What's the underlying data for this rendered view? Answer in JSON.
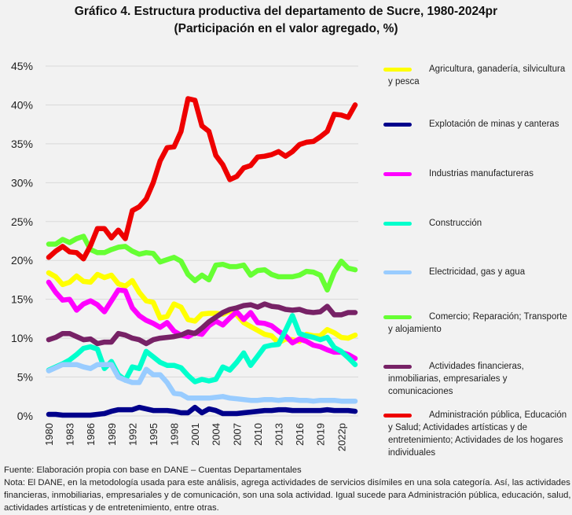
{
  "title": {
    "line1": "Gráfico 4. Estructura productiva del departamento de Sucre, 1980-2024pr",
    "line2": "(Participación en el valor agregado, %)"
  },
  "footer": {
    "source": "Fuente: Elaboración propia con base en DANE – Cuentas Departamentales",
    "note": "Nota: El DANE, en la metodología usada para este análisis, agrega actividades de servicios disímiles en una sola categoría. Así, las actividades financieras, inmobiliarias, empresariales y de comunicación, son una sola actividad. Igual sucede para Administración pública, educación, salud, actividades artísticas y de entretenimiento, entre otras."
  },
  "chart_data": {
    "type": "line",
    "title": "Gráfico 4. Estructura productiva del departamento de Sucre, 1980-2024pr",
    "subtitle": "(Participación en el valor agregado, %)",
    "xlabel": "",
    "ylabel": "",
    "ylim": [
      0,
      45
    ],
    "yticks": [
      "0%",
      "5%",
      "10%",
      "15%",
      "20%",
      "25%",
      "30%",
      "35%",
      "40%",
      "45%"
    ],
    "grid": true,
    "legend_position": "right",
    "x": [
      1980,
      1981,
      1982,
      1983,
      1984,
      1985,
      1986,
      1987,
      1988,
      1989,
      1990,
      1991,
      1992,
      1993,
      1994,
      1995,
      1996,
      1997,
      1998,
      1999,
      2000,
      2001,
      2002,
      2003,
      2004,
      2005,
      2006,
      2007,
      2008,
      2009,
      2010,
      2011,
      2012,
      2013,
      2014,
      2015,
      2016,
      2017,
      2018,
      2019,
      2020,
      2021,
      2022,
      2023,
      2024
    ],
    "xtick_labels": [
      "1980",
      "1983",
      "1986",
      "1989",
      "1992",
      "1995",
      "1998",
      "2001",
      "2004",
      "2007",
      "2010",
      "2013",
      "2016",
      "2019",
      "2022p"
    ],
    "series": [
      {
        "name": "Agricultura, ganadería, silvicultura y pesca",
        "color": "#ffff00",
        "values": [
          18.4,
          17.9,
          16.9,
          17.2,
          18.0,
          17.3,
          17.2,
          18.2,
          17.8,
          18.1,
          17.0,
          16.7,
          17.4,
          15.9,
          14.8,
          14.6,
          12.6,
          12.8,
          14.4,
          14.0,
          12.4,
          12.2,
          13.1,
          13.2,
          13.2,
          13.1,
          13.5,
          13.0,
          12.0,
          11.5,
          11.0,
          10.5,
          10.3,
          9.4,
          9.9,
          9.8,
          9.6,
          10.5,
          10.3,
          10.3,
          11.1,
          10.7,
          10.1,
          10.0,
          10.4
        ]
      },
      {
        "name": "Explotación de minas y canteras",
        "color": "#00008b",
        "values": [
          0.2,
          0.2,
          0.1,
          0.1,
          0.1,
          0.1,
          0.1,
          0.2,
          0.3,
          0.6,
          0.8,
          0.8,
          0.8,
          1.1,
          0.9,
          0.7,
          0.7,
          0.7,
          0.6,
          0.4,
          0.4,
          1.1,
          0.4,
          0.9,
          0.7,
          0.3,
          0.3,
          0.3,
          0.4,
          0.5,
          0.6,
          0.7,
          0.7,
          0.8,
          0.8,
          0.7,
          0.7,
          0.7,
          0.7,
          0.7,
          0.8,
          0.7,
          0.7,
          0.7,
          0.6
        ]
      },
      {
        "name": "Industrias manufactureras",
        "color": "#ff00ff",
        "values": [
          17.2,
          15.9,
          14.9,
          15.0,
          13.6,
          14.4,
          14.8,
          14.3,
          13.4,
          14.8,
          16.2,
          16.1,
          13.9,
          12.9,
          12.3,
          11.9,
          11.4,
          12.0,
          10.9,
          10.4,
          10.2,
          10.7,
          10.5,
          11.6,
          12.2,
          11.7,
          12.6,
          13.4,
          12.4,
          13.3,
          12.0,
          11.9,
          11.6,
          10.9,
          10.3,
          9.4,
          9.9,
          9.6,
          9.1,
          8.9,
          8.5,
          8.2,
          8.2,
          7.9,
          7.4
        ]
      },
      {
        "name": "Construcción",
        "color": "#00ffcc",
        "values": [
          5.9,
          6.3,
          6.7,
          7.2,
          7.9,
          8.7,
          8.9,
          8.6,
          6.1,
          7.0,
          5.3,
          4.6,
          6.3,
          6.1,
          8.3,
          7.6,
          6.9,
          6.5,
          6.5,
          6.2,
          5.2,
          4.4,
          4.7,
          4.5,
          4.7,
          6.3,
          5.9,
          6.9,
          8.1,
          6.5,
          7.7,
          8.9,
          9.1,
          9.2,
          11.0,
          12.9,
          10.6,
          10.3,
          10.1,
          9.8,
          10.1,
          8.8,
          8.3,
          7.5,
          6.6
        ]
      },
      {
        "name": "Electricidad, gas y agua",
        "color": "#99ccff",
        "values": [
          5.8,
          6.2,
          6.6,
          6.6,
          6.6,
          6.3,
          6.1,
          6.6,
          6.6,
          6.6,
          5.0,
          4.6,
          4.3,
          4.3,
          6.0,
          5.3,
          5.3,
          4.3,
          2.9,
          2.8,
          2.3,
          2.3,
          2.3,
          2.3,
          2.4,
          2.5,
          2.3,
          2.2,
          2.1,
          2.0,
          2.0,
          2.1,
          2.1,
          2.0,
          2.1,
          2.1,
          2.0,
          2.0,
          1.9,
          2.0,
          2.0,
          2.0,
          1.9,
          1.9,
          1.9
        ]
      },
      {
        "name": "Comercio; Reparación; Transporte y alojamiento",
        "color": "#66ff33",
        "values": [
          22.1,
          22.1,
          22.7,
          22.3,
          22.8,
          23.1,
          21.4,
          21.0,
          21.0,
          21.4,
          21.7,
          21.8,
          21.2,
          20.8,
          21.0,
          20.9,
          19.8,
          20.1,
          20.4,
          19.9,
          18.2,
          17.4,
          18.1,
          17.5,
          19.4,
          19.5,
          19.2,
          19.2,
          19.4,
          18.1,
          18.7,
          18.8,
          18.2,
          17.9,
          17.9,
          17.9,
          18.1,
          18.6,
          18.5,
          18.1,
          16.2,
          18.5,
          19.9,
          19.0,
          18.8
        ]
      },
      {
        "name": "Actividades financieras, inmobiliarias, empresariales y comunicaciones",
        "color": "#772266",
        "values": [
          9.8,
          10.1,
          10.6,
          10.6,
          10.2,
          9.8,
          9.9,
          9.3,
          9.5,
          9.5,
          10.6,
          10.4,
          10.0,
          9.8,
          9.3,
          9.8,
          10.0,
          10.1,
          10.2,
          10.4,
          10.8,
          10.6,
          11.3,
          12.1,
          12.7,
          13.3,
          13.7,
          13.9,
          14.2,
          14.3,
          14.0,
          14.4,
          14.1,
          14.0,
          13.7,
          13.6,
          13.7,
          13.4,
          13.3,
          13.4,
          14.1,
          13.0,
          13.0,
          13.3,
          13.3
        ]
      },
      {
        "name": "Administración pública, Educación y Salud; Actividades artísticas y de entretenimiento; Actividades de los hogares individuales",
        "color": "#ee0000",
        "values": [
          20.4,
          21.2,
          21.8,
          21.1,
          21.0,
          20.2,
          21.9,
          24.1,
          24.1,
          22.9,
          23.9,
          22.8,
          26.4,
          26.9,
          27.9,
          30.0,
          32.8,
          34.5,
          34.6,
          36.6,
          40.8,
          40.6,
          37.3,
          36.6,
          33.5,
          32.3,
          30.4,
          30.8,
          31.9,
          32.2,
          33.3,
          33.4,
          33.6,
          34.0,
          33.4,
          34.0,
          34.9,
          35.2,
          35.3,
          35.9,
          36.6,
          38.8,
          38.7,
          38.4,
          40.0
        ]
      }
    ]
  }
}
